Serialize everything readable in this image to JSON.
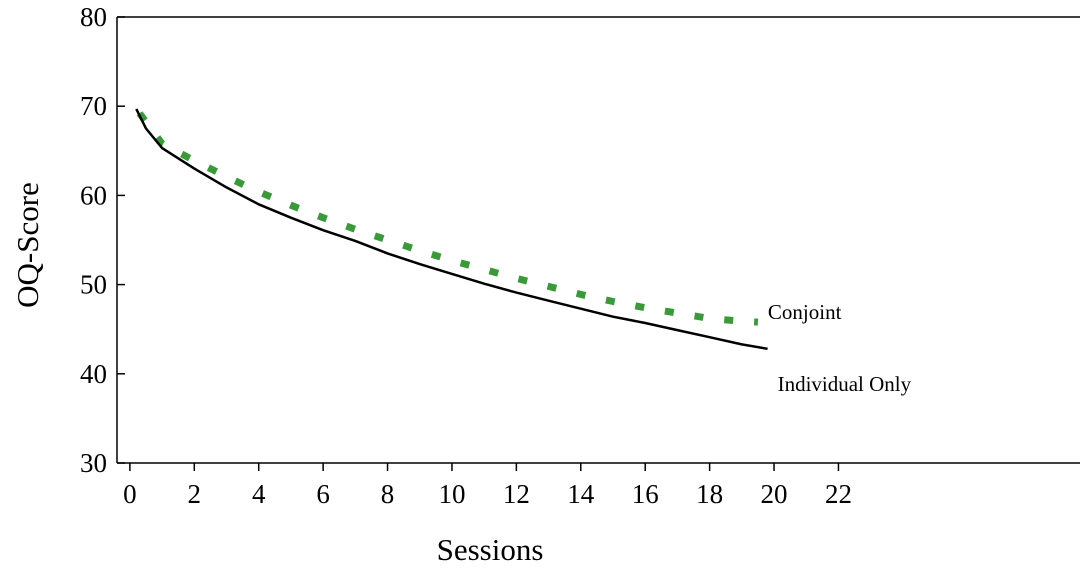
{
  "chart_data": {
    "type": "line",
    "title": "",
    "xlabel": "Sessions",
    "ylabel": "OQ-Score",
    "xlim": [
      -0.4,
      29.5
    ],
    "ylim": [
      30,
      80
    ],
    "xticks": [
      "0",
      "2",
      "4",
      "6",
      "8",
      "10",
      "12",
      "14",
      "16",
      "18",
      "20",
      "22"
    ],
    "yticks": [
      "30",
      "40",
      "50",
      "60",
      "70",
      "80"
    ],
    "grid": false,
    "legend": "none",
    "series": [
      {
        "name": "Conjoint",
        "color": "#3a9a3a",
        "style": "dashed",
        "x": [
          0.3,
          1,
          2,
          3,
          4,
          5,
          6,
          7,
          8,
          9,
          10,
          11,
          12,
          13,
          14,
          15,
          16,
          17,
          18,
          19,
          19.5
        ],
        "y": [
          69.2,
          65.8,
          63.9,
          62.1,
          60.4,
          58.9,
          57.5,
          56.2,
          55.0,
          53.8,
          52.7,
          51.7,
          50.7,
          49.8,
          48.9,
          48.1,
          47.4,
          46.8,
          46.2,
          45.9,
          45.8
        ]
      },
      {
        "name": "Individual Only",
        "color": "#000000",
        "style": "solid",
        "x": [
          0.2,
          0.5,
          1,
          2,
          3,
          4,
          5,
          6,
          7,
          8,
          9,
          10,
          11,
          12,
          13,
          14,
          15,
          16,
          17,
          18,
          19,
          19.8
        ],
        "y": [
          69.7,
          67.5,
          65.3,
          63.0,
          60.9,
          59.0,
          57.5,
          56.1,
          54.9,
          53.5,
          52.3,
          51.2,
          50.1,
          49.1,
          48.2,
          47.3,
          46.4,
          45.7,
          44.9,
          44.1,
          43.3,
          42.8
        ]
      }
    ]
  }
}
